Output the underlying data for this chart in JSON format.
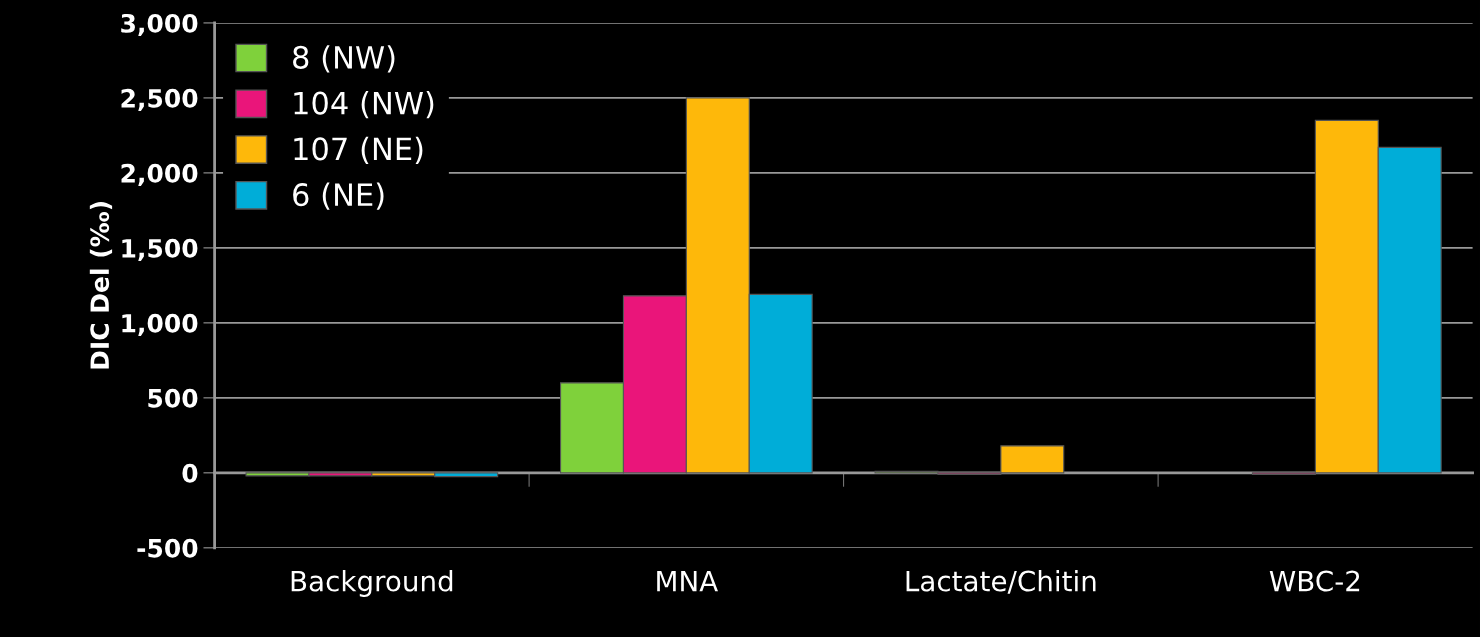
{
  "chart_data": {
    "type": "bar",
    "ylabel": "DIC Del (‰)",
    "categories": [
      "Background",
      "MNA",
      "Lactate/Chitin",
      "WBC-2"
    ],
    "series": [
      {
        "name": "8 (NW)",
        "color": "#7fd13b",
        "values": [
          -20,
          600,
          10,
          null
        ]
      },
      {
        "name": "104 (NW)",
        "color": "#ea157a",
        "values": [
          -20,
          1180,
          -10,
          -10
        ]
      },
      {
        "name": "107 (NE)",
        "color": "#feb80a",
        "values": [
          -20,
          2500,
          180,
          2350
        ]
      },
      {
        "name": "6 (NE)",
        "color": "#00add8",
        "values": [
          -25,
          1190,
          null,
          2170
        ]
      }
    ],
    "ylim": [
      -500,
      3000
    ],
    "yticks": [
      {
        "value": -500,
        "label": "-500"
      },
      0,
      500,
      {
        "value": 1000,
        "label": "1,000"
      },
      {
        "value": 1500,
        "label": "1,500"
      },
      {
        "value": 2000,
        "label": "2,000"
      },
      {
        "value": 2500,
        "label": "2,500"
      },
      {
        "value": 3000,
        "label": "3,000"
      }
    ],
    "grid": "y",
    "legend": "top left"
  }
}
